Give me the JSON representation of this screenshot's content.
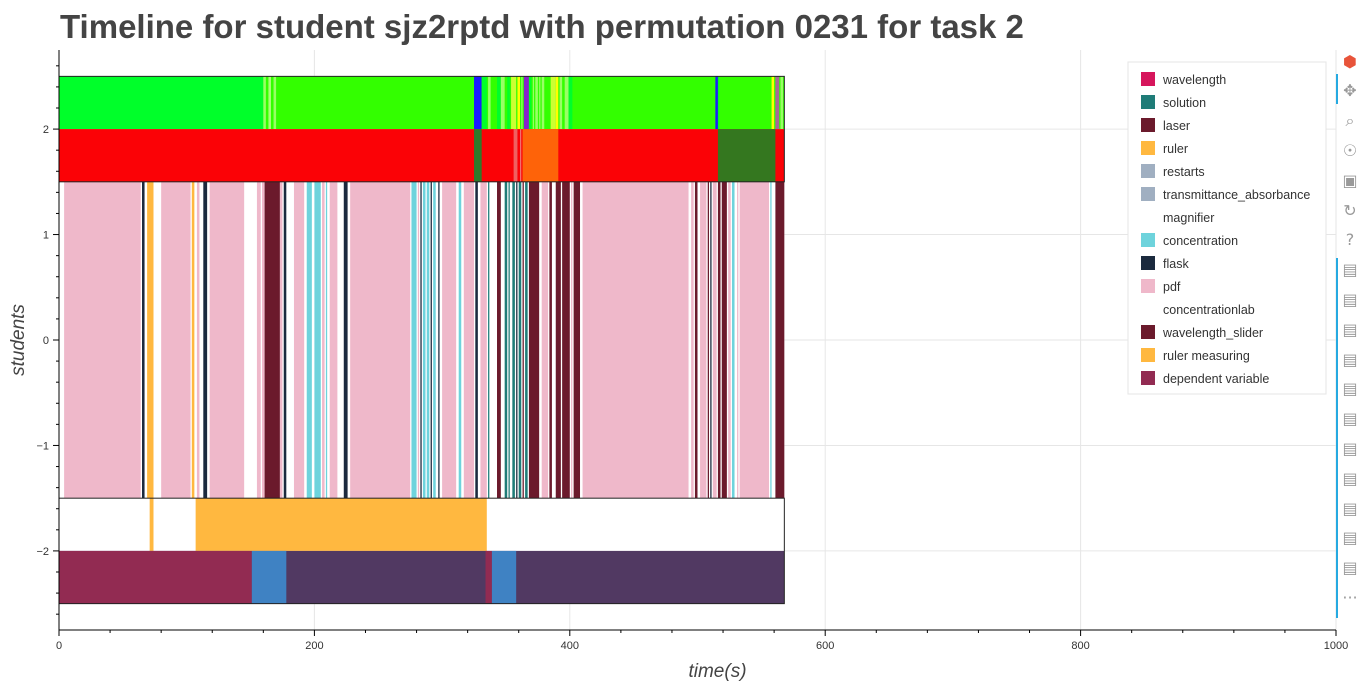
{
  "title": "Timeline for student sjz2rptd with permutation 0231 for task 2",
  "chart_data": {
    "type": "timeline",
    "title": "Timeline for student sjz2rptd with permutation 0231 for task 2",
    "xlabel": "time(s)",
    "ylabel": "students",
    "xlim": [
      0,
      1000
    ],
    "ylim": [
      -2.75,
      2.75
    ],
    "x_ticks": [
      0,
      200,
      400,
      600,
      800,
      1000
    ],
    "y_ticks": [
      -2,
      -1,
      0,
      1,
      2
    ],
    "y_tick_labels": [
      "−2",
      "−1",
      "0",
      "1",
      "2"
    ],
    "grid": true,
    "legend_position": "top-right",
    "legend": [
      {
        "label": "wavelength",
        "color": "#d6165c"
      },
      {
        "label": "solution",
        "color": "#1f7c78"
      },
      {
        "label": "laser",
        "color": "#6b1a2c"
      },
      {
        "label": "ruler",
        "color": "#ffb840"
      },
      {
        "label": "restarts",
        "color": "#a0afc1"
      },
      {
        "label": "transmittance_absorbance",
        "color": "#a0afc1"
      },
      {
        "label": "magnifier",
        "color": "#ffffff"
      },
      {
        "label": "concentration",
        "color": "#6ed3dc"
      },
      {
        "label": "flask",
        "color": "#1b2a3e"
      },
      {
        "label": "pdf",
        "color": "#efb8ca"
      },
      {
        "label": "concentrationlab",
        "color": "#ffffff"
      },
      {
        "label": "wavelength_slider",
        "color": "#6b1a2c"
      },
      {
        "label": "ruler measuring",
        "color": "#ffb840"
      },
      {
        "label": "dependent variable",
        "color": "#922b52"
      }
    ],
    "rows": [
      {
        "y_range": [
          2.0,
          2.5
        ],
        "base_color": "#33ff00",
        "segments": [
          {
            "start": 0,
            "end": 160,
            "color": "#00ff2a"
          },
          {
            "start": 160,
            "end": 162,
            "color": "#99ff66"
          },
          {
            "start": 164,
            "end": 166,
            "color": "#aaff77"
          },
          {
            "start": 168,
            "end": 170,
            "color": "#99ff66"
          },
          {
            "start": 325,
            "end": 331,
            "color": "#1a1aff"
          },
          {
            "start": 331,
            "end": 335,
            "color": "#00ff2a"
          },
          {
            "start": 336,
            "end": 338,
            "color": "#99ff66"
          },
          {
            "start": 343,
            "end": 346,
            "color": "#00ff2a"
          },
          {
            "start": 346,
            "end": 349,
            "color": "#99ff66"
          },
          {
            "start": 351,
            "end": 353,
            "color": "#00ff2a"
          },
          {
            "start": 354,
            "end": 358,
            "color": "#ccff33"
          },
          {
            "start": 359,
            "end": 361,
            "color": "#ffff00"
          },
          {
            "start": 362,
            "end": 363,
            "color": "#99ff66"
          },
          {
            "start": 364,
            "end": 368,
            "color": "#8822cc"
          },
          {
            "start": 368,
            "end": 370,
            "color": "#00ff2a"
          },
          {
            "start": 371,
            "end": 372,
            "color": "#99ff66"
          },
          {
            "start": 373,
            "end": 375,
            "color": "#99ff66"
          },
          {
            "start": 376,
            "end": 377,
            "color": "#99ff66"
          },
          {
            "start": 378,
            "end": 380,
            "color": "#99ff66"
          },
          {
            "start": 385,
            "end": 389,
            "color": "#ccff33"
          },
          {
            "start": 389,
            "end": 391,
            "color": "#ffff00"
          },
          {
            "start": 392,
            "end": 394,
            "color": "#99ff66"
          },
          {
            "start": 396,
            "end": 399,
            "color": "#99ff66"
          },
          {
            "start": 399,
            "end": 402,
            "color": "#00ff2a"
          },
          {
            "start": 514,
            "end": 516,
            "color": "#1a1aff"
          },
          {
            "start": 516,
            "end": 517,
            "color": "#00ff2a"
          },
          {
            "start": 558,
            "end": 560,
            "color": "#ffff00"
          },
          {
            "start": 561,
            "end": 564,
            "color": "#aa6699"
          },
          {
            "start": 565,
            "end": 567,
            "color": "#99ff66"
          }
        ]
      },
      {
        "y_range": [
          1.5,
          2.0
        ],
        "base_color": "#fb0206",
        "segments": [
          {
            "start": 325,
            "end": 331,
            "color": "#2f7a2a"
          },
          {
            "start": 356,
            "end": 359,
            "color": "#f06060"
          },
          {
            "start": 361,
            "end": 362,
            "color": "#f07070"
          },
          {
            "start": 363,
            "end": 391,
            "color": "#fe6309"
          },
          {
            "start": 516,
            "end": 561,
            "color": "#34771f"
          }
        ]
      },
      {
        "y_range": [
          -1.5,
          1.5
        ],
        "base_color": "#ffffff",
        "segments": [
          {
            "start": 4,
            "end": 64,
            "color": "#efb8ca"
          },
          {
            "start": 65,
            "end": 67,
            "color": "#1b2a3e"
          },
          {
            "start": 69,
            "end": 74,
            "color": "#ffb840"
          },
          {
            "start": 80,
            "end": 103,
            "color": "#efb8ca"
          },
          {
            "start": 104,
            "end": 106,
            "color": "#ffb840"
          },
          {
            "start": 108,
            "end": 110,
            "color": "#efb8ca"
          },
          {
            "start": 113,
            "end": 116,
            "color": "#1b2a3e"
          },
          {
            "start": 118,
            "end": 145,
            "color": "#efb8ca"
          },
          {
            "start": 155,
            "end": 158,
            "color": "#efb8ca"
          },
          {
            "start": 159,
            "end": 161,
            "color": "#efb8ca"
          },
          {
            "start": 161,
            "end": 173,
            "color": "#6b1a2c"
          },
          {
            "start": 173,
            "end": 175,
            "color": "#efb8ca"
          },
          {
            "start": 176,
            "end": 178,
            "color": "#1b2a3e"
          },
          {
            "start": 184,
            "end": 192,
            "color": "#efb8ca"
          },
          {
            "start": 194,
            "end": 198,
            "color": "#6ed3dc"
          },
          {
            "start": 200,
            "end": 205,
            "color": "#6ed3dc"
          },
          {
            "start": 206,
            "end": 208,
            "color": "#efb8ca"
          },
          {
            "start": 209,
            "end": 210,
            "color": "#6ed3dc"
          },
          {
            "start": 212,
            "end": 218,
            "color": "#efb8ca"
          },
          {
            "start": 223,
            "end": 226,
            "color": "#1b2a3e"
          },
          {
            "start": 228,
            "end": 275,
            "color": "#efb8ca"
          },
          {
            "start": 276,
            "end": 280,
            "color": "#6ed3dc"
          },
          {
            "start": 281,
            "end": 282,
            "color": "#efb8ca"
          },
          {
            "start": 283,
            "end": 284,
            "color": "#1b2a3e"
          },
          {
            "start": 285,
            "end": 287,
            "color": "#6ed3dc"
          },
          {
            "start": 288,
            "end": 290,
            "color": "#6ed3dc"
          },
          {
            "start": 291,
            "end": 292,
            "color": "#1b2a3e"
          },
          {
            "start": 293,
            "end": 295,
            "color": "#6ed3dc"
          },
          {
            "start": 297,
            "end": 298,
            "color": "#1b2a3e"
          },
          {
            "start": 300,
            "end": 311,
            "color": "#efb8ca"
          },
          {
            "start": 313,
            "end": 315,
            "color": "#6ed3dc"
          },
          {
            "start": 317,
            "end": 325,
            "color": "#efb8ca"
          },
          {
            "start": 326,
            "end": 328,
            "color": "#1b2a3e"
          },
          {
            "start": 330,
            "end": 335,
            "color": "#efb8ca"
          },
          {
            "start": 336,
            "end": 337,
            "color": "#1f7c78"
          },
          {
            "start": 343,
            "end": 346,
            "color": "#6b1a2c"
          },
          {
            "start": 349,
            "end": 351,
            "color": "#1f7c78"
          },
          {
            "start": 352,
            "end": 353,
            "color": "#1f7c78"
          },
          {
            "start": 355,
            "end": 357,
            "color": "#1f7c78"
          },
          {
            "start": 358,
            "end": 359,
            "color": "#1b2a3e"
          },
          {
            "start": 360,
            "end": 362,
            "color": "#1f7c78"
          },
          {
            "start": 363,
            "end": 364,
            "color": "#6b1a2c"
          },
          {
            "start": 365,
            "end": 367,
            "color": "#1f7c78"
          },
          {
            "start": 368,
            "end": 376,
            "color": "#6b1a2c"
          },
          {
            "start": 378,
            "end": 383,
            "color": "#efb8ca"
          },
          {
            "start": 384,
            "end": 386,
            "color": "#6b1a2c"
          },
          {
            "start": 389,
            "end": 393,
            "color": "#6b1a2c"
          },
          {
            "start": 394,
            "end": 400,
            "color": "#6b1a2c"
          },
          {
            "start": 401,
            "end": 402,
            "color": "#efb8ca"
          },
          {
            "start": 403,
            "end": 408,
            "color": "#6b1a2c"
          },
          {
            "start": 410,
            "end": 493,
            "color": "#efb8ca"
          },
          {
            "start": 495,
            "end": 497,
            "color": "#efb8ca"
          },
          {
            "start": 498,
            "end": 500,
            "color": "#6b1a2c"
          },
          {
            "start": 502,
            "end": 507,
            "color": "#efb8ca"
          },
          {
            "start": 508,
            "end": 509,
            "color": "#6b1a2c"
          },
          {
            "start": 510,
            "end": 511,
            "color": "#1b2a3e"
          },
          {
            "start": 512,
            "end": 515,
            "color": "#efb8ca"
          },
          {
            "start": 516,
            "end": 518,
            "color": "#6b1a2c"
          },
          {
            "start": 519,
            "end": 523,
            "color": "#6b1a2c"
          },
          {
            "start": 524,
            "end": 526,
            "color": "#efb8ca"
          },
          {
            "start": 527,
            "end": 529,
            "color": "#6ed3dc"
          },
          {
            "start": 531,
            "end": 532,
            "color": "#efb8ca"
          },
          {
            "start": 533,
            "end": 556,
            "color": "#efb8ca"
          },
          {
            "start": 557,
            "end": 558,
            "color": "#6ed3dc"
          },
          {
            "start": 561,
            "end": 568,
            "color": "#6b1a2c"
          }
        ]
      },
      {
        "y_range": [
          -2.0,
          -1.5
        ],
        "base_color": "#ffffff",
        "segments": [
          {
            "start": 71,
            "end": 74,
            "color": "#ffb840"
          },
          {
            "start": 107,
            "end": 335,
            "color": "#ffb840"
          }
        ]
      },
      {
        "y_range": [
          -2.5,
          -2.0
        ],
        "base_color": "#513962",
        "segments": [
          {
            "start": 0,
            "end": 151,
            "color": "#922b52"
          },
          {
            "start": 151,
            "end": 178,
            "color": "#3f82c3"
          },
          {
            "start": 334,
            "end": 339,
            "color": "#922b52"
          },
          {
            "start": 339,
            "end": 358,
            "color": "#3f82c3"
          }
        ]
      }
    ],
    "block_extent": [
      0,
      568
    ]
  },
  "toolbar": {
    "tools": [
      {
        "name": "logo-icon",
        "glyph": "⬢"
      },
      {
        "name": "pan-icon",
        "glyph": "✥"
      },
      {
        "name": "box-zoom-icon",
        "glyph": "⌕"
      },
      {
        "name": "wheel-zoom-icon",
        "glyph": "☉"
      },
      {
        "name": "save-icon",
        "glyph": "▣"
      },
      {
        "name": "reset-icon",
        "glyph": "↻"
      },
      {
        "name": "help-icon",
        "glyph": "?"
      },
      {
        "name": "hover-icon",
        "glyph": "▤"
      },
      {
        "name": "hover-icon",
        "glyph": "▤"
      },
      {
        "name": "hover-icon",
        "glyph": "▤"
      },
      {
        "name": "hover-icon",
        "glyph": "▤"
      },
      {
        "name": "hover-icon",
        "glyph": "▤"
      },
      {
        "name": "hover-icon",
        "glyph": "▤"
      },
      {
        "name": "hover-icon",
        "glyph": "▤"
      },
      {
        "name": "hover-icon",
        "glyph": "▤"
      },
      {
        "name": "hover-icon",
        "glyph": "▤"
      },
      {
        "name": "hover-icon",
        "glyph": "▤"
      },
      {
        "name": "hover-icon",
        "glyph": "▤"
      },
      {
        "name": "more-icon",
        "glyph": "···"
      }
    ]
  }
}
